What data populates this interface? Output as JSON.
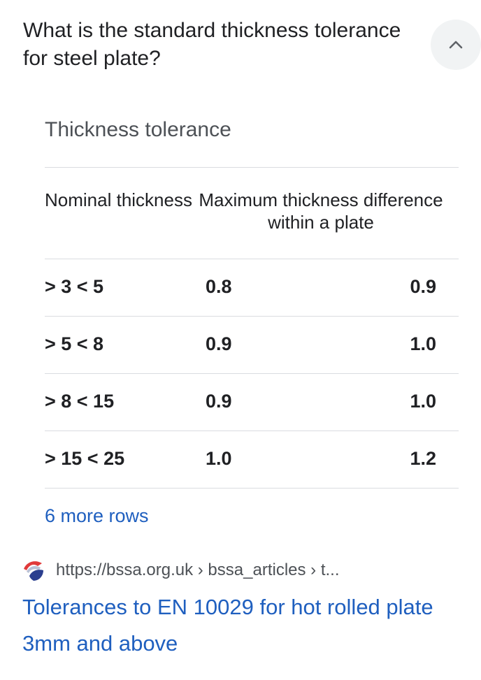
{
  "question": "What is the standard thickness tolerance for steel plate?",
  "collapse_icon": "chevron-up-icon",
  "table_title": "Thickness tolerance",
  "columns": {
    "nominal": "Nominal thickness",
    "max_diff": "Maximum thickness difference within a plate"
  },
  "rows": [
    {
      "nominal": "> 3 < 5",
      "v1": "0.8",
      "v2": "0.9"
    },
    {
      "nominal": "> 5 < 8",
      "v1": "0.9",
      "v2": "1.0"
    },
    {
      "nominal": "> 8 < 15",
      "v1": "0.9",
      "v2": "1.0"
    },
    {
      "nominal": "> 15 < 25",
      "v1": "1.0",
      "v2": "1.2"
    }
  ],
  "more_rows": "6 more rows",
  "source": {
    "favicon": "bssa-logo-icon",
    "url": "https://bssa.org.uk › bssa_articles › t..."
  },
  "result_title": "Tolerances to EN 10029 for hot rolled plate 3mm and above",
  "colors": {
    "link": "#1f5fbf",
    "text": "#202124",
    "muted": "#4d5156",
    "divider": "#dadce0"
  }
}
